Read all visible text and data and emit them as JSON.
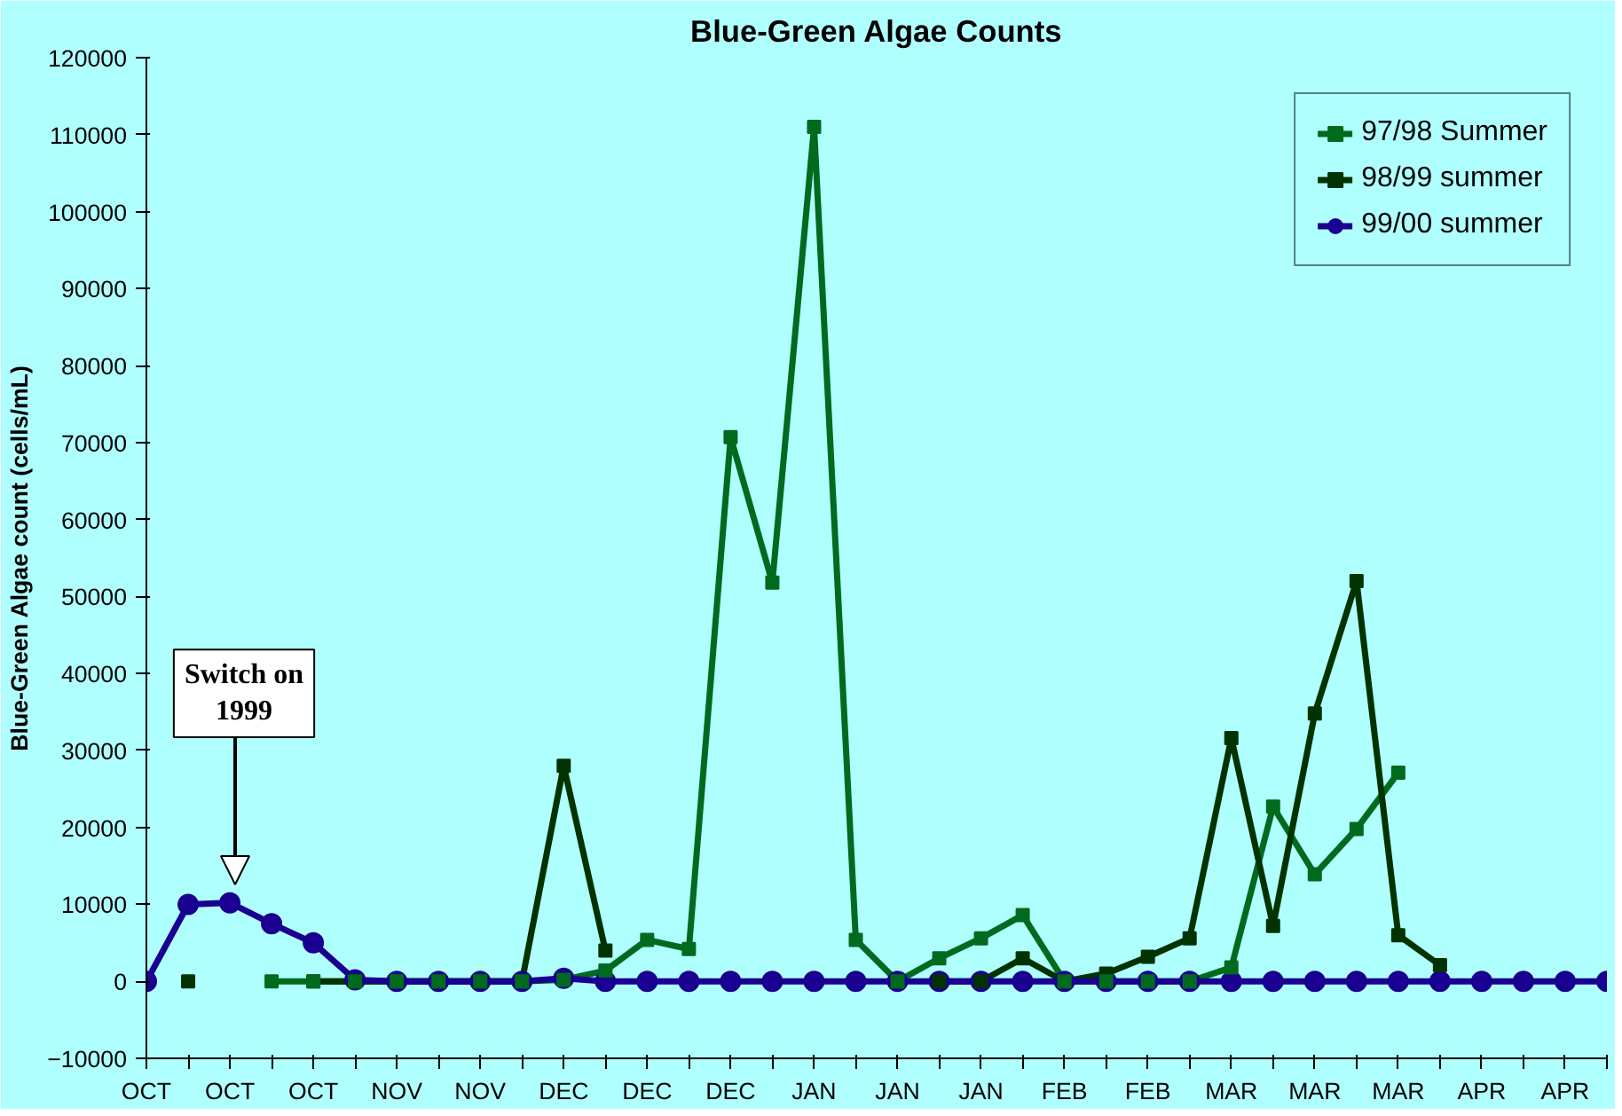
{
  "chart_data": {
    "type": "line",
    "title": "Blue-Green Algae Counts",
    "ylabel": "Blue-Green Algae count (cells/mL)",
    "categories": [
      "OCT",
      null,
      "OCT",
      null,
      "OCT",
      null,
      "NOV",
      null,
      "NOV",
      null,
      "DEC",
      null,
      "DEC",
      null,
      "DEC",
      null,
      "JAN",
      null,
      "JAN",
      null,
      "JAN",
      null,
      "FEB",
      null,
      "FEB",
      null,
      "MAR",
      null,
      "MAR",
      null,
      "MAR",
      null,
      "APR",
      null,
      "APR",
      null
    ],
    "ylim": [
      -10000,
      120000
    ],
    "yticks": [
      -10000,
      0,
      10000,
      20000,
      30000,
      40000,
      50000,
      60000,
      70000,
      80000,
      90000,
      100000,
      110000,
      120000
    ],
    "grid": false,
    "legend": "top right",
    "line_style": "solid",
    "series": [
      {
        "name": "97/98 Summer",
        "color": "#006a1e",
        "marker": "square",
        "values": [
          null,
          null,
          null,
          0,
          0,
          0,
          0,
          0,
          0,
          0,
          200,
          1400,
          5400,
          4200,
          70700,
          51800,
          111000,
          5400,
          0,
          3000,
          5600,
          8600,
          0,
          0,
          0,
          0,
          1800,
          22700,
          13900,
          19800,
          27100,
          null,
          null,
          null,
          null,
          null
        ]
      },
      {
        "name": "98/99 summer",
        "color": "#003300",
        "marker": "square",
        "values": [
          null,
          0,
          null,
          null,
          0,
          0,
          0,
          0,
          0,
          0,
          28000,
          4000,
          null,
          null,
          null,
          null,
          null,
          null,
          null,
          0,
          0,
          3000,
          0,
          1000,
          3200,
          5600,
          31600,
          7200,
          34800,
          52000,
          6000,
          2100,
          null,
          null,
          null,
          null
        ]
      },
      {
        "name": "99/00 summer",
        "color": "#1a0090",
        "marker": "circle",
        "values": [
          0,
          10000,
          10200,
          7500,
          5000,
          200,
          0,
          0,
          0,
          0,
          400,
          0,
          0,
          0,
          0,
          0,
          0,
          0,
          0,
          0,
          0,
          0,
          0,
          0,
          0,
          0,
          0,
          0,
          0,
          0,
          0,
          0,
          0,
          0,
          0,
          0
        ]
      }
    ],
    "annotations": [
      "Switch on\n1999"
    ]
  }
}
